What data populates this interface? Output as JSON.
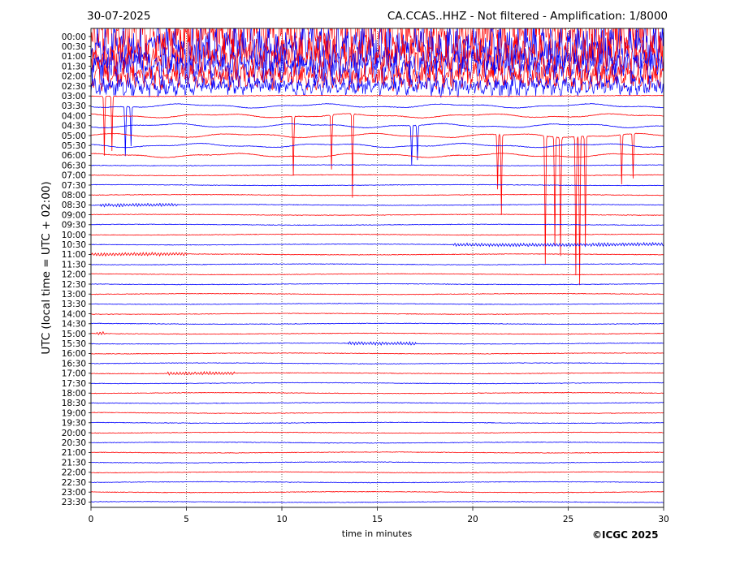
{
  "header": {
    "date": "30-07-2025",
    "title": "CA.CCAS..HHZ - Not filtered - Amplification: 1/8000"
  },
  "footer": {
    "copyright": "©ICGC 2025"
  },
  "chart_data": {
    "type": "line",
    "title": "CA.CCAS..HHZ - Not filtered - Amplification: 1/8000",
    "subtitle": "30-07-2025",
    "xlabel": "time in minutes",
    "ylabel": "UTC (local time = UTC + 02:00)",
    "xlim": [
      0,
      30
    ],
    "x_ticks": [
      0,
      5,
      10,
      15,
      20,
      25,
      30
    ],
    "grid": "vertical dotted lines at x = 5, 10, 15, 20, 25",
    "trace_colors": [
      "#ff0000",
      "#0000ff"
    ],
    "traces": [
      "00:00",
      "00:30",
      "01:00",
      "01:30",
      "02:00",
      "02:30",
      "03:00",
      "03:30",
      "04:00",
      "04:30",
      "05:00",
      "05:30",
      "06:00",
      "06:30",
      "07:00",
      "07:30",
      "08:00",
      "08:30",
      "09:00",
      "09:30",
      "10:00",
      "10:30",
      "11:00",
      "11:30",
      "12:00",
      "12:30",
      "13:00",
      "13:30",
      "14:00",
      "14:30",
      "15:00",
      "15:30",
      "16:00",
      "16:30",
      "17:00",
      "17:30",
      "18:00",
      "18:30",
      "19:00",
      "19:30",
      "20:00",
      "20:30",
      "21:00",
      "21:30",
      "22:00",
      "22:30",
      "23:00",
      "23:30"
    ],
    "activity": {
      "high_noise_traces": [
        "00:00",
        "00:30",
        "01:00",
        "01:30",
        "02:00",
        "02:30"
      ],
      "long_period_swell_traces": [
        "03:30",
        "04:00",
        "04:30",
        "05:00",
        "05:30",
        "06:00"
      ],
      "noise_burst_windows": [
        {
          "trace": "08:30",
          "x": [
            0.5,
            4.5
          ]
        },
        {
          "trace": "10:30",
          "x": [
            19.0,
            30.0
          ]
        },
        {
          "trace": "11:00",
          "x": [
            0.0,
            5.0
          ]
        },
        {
          "trace": "15:00",
          "x": [
            0.3,
            0.7
          ]
        },
        {
          "trace": "15:30",
          "x": [
            13.5,
            17.0
          ]
        },
        {
          "trace": "17:00",
          "x": [
            4.0,
            7.5
          ]
        }
      ],
      "spikes": [
        {
          "trace": "03:00",
          "x": 0.7,
          "depth": 6.0
        },
        {
          "trace": "03:00",
          "x": 1.1,
          "depth": 5.5
        },
        {
          "trace": "03:30",
          "x": 1.8,
          "depth": 5.0
        },
        {
          "trace": "03:30",
          "x": 2.1,
          "depth": 4.0
        },
        {
          "trace": "04:00",
          "x": 10.6,
          "depth": 6.0
        },
        {
          "trace": "04:00",
          "x": 12.6,
          "depth": 5.5
        },
        {
          "trace": "04:00",
          "x": 13.7,
          "depth": 8.5
        },
        {
          "trace": "04:30",
          "x": 16.8,
          "depth": 4.0
        },
        {
          "trace": "04:30",
          "x": 17.1,
          "depth": 3.5
        },
        {
          "trace": "05:00",
          "x": 21.3,
          "depth": 5.5
        },
        {
          "trace": "05:00",
          "x": 21.5,
          "depth": 8.0
        },
        {
          "trace": "05:00",
          "x": 23.8,
          "depth": 13.0
        },
        {
          "trace": "05:00",
          "x": 24.3,
          "depth": 11.0
        },
        {
          "trace": "05:00",
          "x": 24.6,
          "depth": 12.0
        },
        {
          "trace": "05:00",
          "x": 25.4,
          "depth": 14.0
        },
        {
          "trace": "05:00",
          "x": 25.6,
          "depth": 15.0
        },
        {
          "trace": "05:00",
          "x": 25.9,
          "depth": 11.0
        },
        {
          "trace": "05:00",
          "x": 27.8,
          "depth": 5.0
        },
        {
          "trace": "05:00",
          "x": 28.4,
          "depth": 4.5
        }
      ]
    }
  }
}
